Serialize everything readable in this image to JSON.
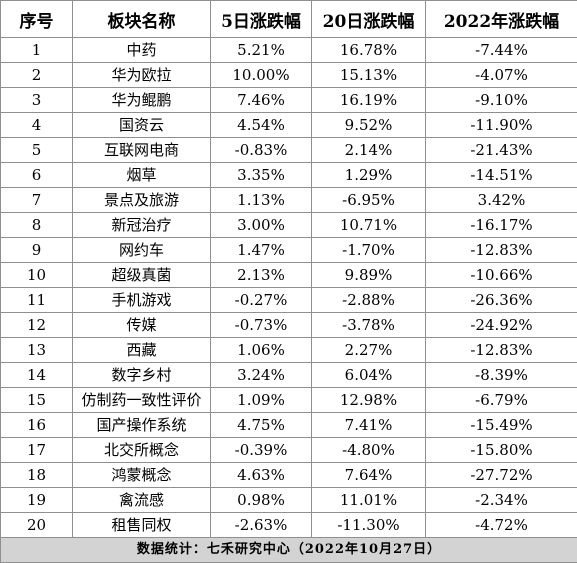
{
  "headers": [
    "序号",
    "板块名称",
    "5日涨跌幅",
    "20日涨跌幅",
    "2022年涨跌幅"
  ],
  "rows": [
    [
      "1",
      "中药",
      "5.21%",
      "16.78%",
      "-7.44%"
    ],
    [
      "2",
      "华为欧拉",
      "10.00%",
      "15.13%",
      "-4.07%"
    ],
    [
      "3",
      "华为鲲鹏",
      "7.46%",
      "16.19%",
      "-9.10%"
    ],
    [
      "4",
      "国资云",
      "4.54%",
      "9.52%",
      "-11.90%"
    ],
    [
      "5",
      "互联网电商",
      "-0.83%",
      "2.14%",
      "-21.43%"
    ],
    [
      "6",
      "烟草",
      "3.35%",
      "1.29%",
      "-14.51%"
    ],
    [
      "7",
      "景点及旅游",
      "1.13%",
      "-6.95%",
      "3.42%"
    ],
    [
      "8",
      "新冠治疗",
      "3.00%",
      "10.71%",
      "-16.17%"
    ],
    [
      "9",
      "网约车",
      "1.47%",
      "-1.70%",
      "-12.83%"
    ],
    [
      "10",
      "超级真菌",
      "2.13%",
      "9.89%",
      "-10.66%"
    ],
    [
      "11",
      "手机游戏",
      "-0.27%",
      "-2.88%",
      "-26.36%"
    ],
    [
      "12",
      "传媒",
      "-0.73%",
      "-3.78%",
      "-24.92%"
    ],
    [
      "13",
      "西藏",
      "1.06%",
      "2.27%",
      "-12.83%"
    ],
    [
      "14",
      "数字乡村",
      "3.24%",
      "6.04%",
      "-8.39%"
    ],
    [
      "15",
      "仿制药一致性评价",
      "1.09%",
      "12.98%",
      "-6.79%"
    ],
    [
      "16",
      "国产操作系统",
      "4.75%",
      "7.41%",
      "-15.49%"
    ],
    [
      "17",
      "北交所概念",
      "-0.39%",
      "-4.80%",
      "-15.80%"
    ],
    [
      "18",
      "鸿蒙概念",
      "4.63%",
      "7.64%",
      "-27.72%"
    ],
    [
      "19",
      "禽流感",
      "0.98%",
      "11.01%",
      "-2.34%"
    ],
    [
      "20",
      "租售同权",
      "-2.63%",
      "-11.30%",
      "-4.72%"
    ]
  ],
  "footer": "数据统计：七禾研究中心（2022年10月27日）"
}
